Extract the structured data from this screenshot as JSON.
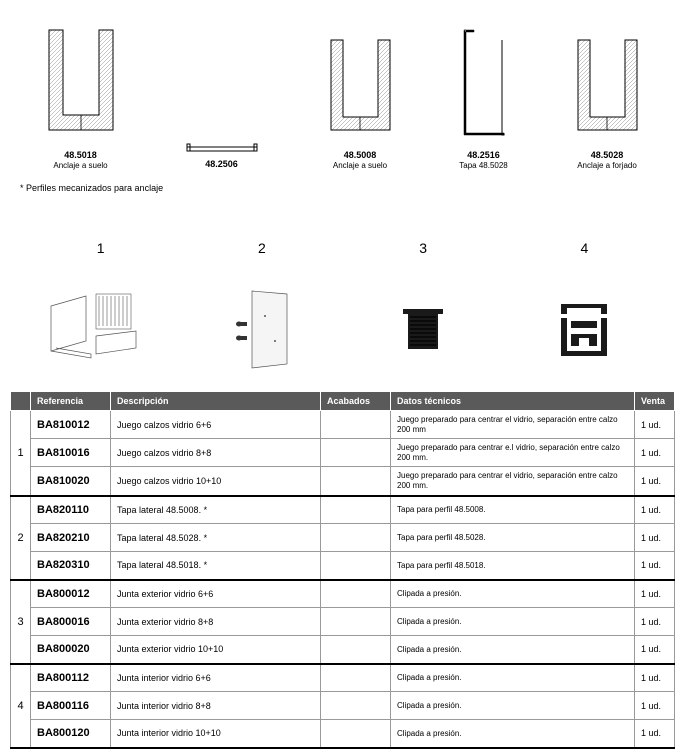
{
  "profiles": [
    {
      "code": "48.5018",
      "label": "Anclaje a suelo",
      "type": "u_tall"
    },
    {
      "code": "48.2506",
      "label": "",
      "type": "flat"
    },
    {
      "code": "48.5008",
      "label": "Anclaje a suelo",
      "type": "u_tall"
    },
    {
      "code": "48.2516",
      "label": "Tapa 48.5028",
      "type": "u_thin"
    },
    {
      "code": "48.5028",
      "label": "Anclaje a forjado",
      "type": "u_tall"
    }
  ],
  "note": "* Perfiles mecanizados para anclaje",
  "components": [
    {
      "num": "1"
    },
    {
      "num": "2"
    },
    {
      "num": "3"
    },
    {
      "num": "4"
    }
  ],
  "table": {
    "headers": {
      "referencia": "Referencia",
      "descripcion": "Descripción",
      "acabados": "Acabados",
      "datos": "Datos técnicos",
      "venta": "Venta"
    },
    "groups": [
      {
        "num": "1",
        "rows": [
          {
            "ref": "BA810012",
            "desc": "Juego calzos vidrio 6+6",
            "acab": "",
            "datos": "Juego preparado para centrar el vidrio, separación entre calzo 200 mm",
            "venta": "1 ud."
          },
          {
            "ref": "BA810016",
            "desc": "Juego calzos vidrio 8+8",
            "acab": "",
            "datos": "Juego preparado para centrar e.l vidrio, separación entre calzo 200 mm.",
            "venta": "1 ud."
          },
          {
            "ref": "BA810020",
            "desc": "Juego calzos vidrio 10+10",
            "acab": "",
            "datos": "Juego preparado para centrar el vidrio, separación entre calzo 200 mm.",
            "venta": "1 ud."
          }
        ]
      },
      {
        "num": "2",
        "rows": [
          {
            "ref": "BA820110",
            "desc": "Tapa lateral 48.5008. *",
            "acab": "",
            "datos": "Tapa para perfil 48.5008.",
            "venta": "1 ud."
          },
          {
            "ref": "BA820210",
            "desc": "Tapa lateral 48.5028. *",
            "acab": "",
            "datos": "Tapa para perfil 48.5028.",
            "venta": "1 ud."
          },
          {
            "ref": "BA820310",
            "desc": "Tapa lateral 48.5018. *",
            "acab": "",
            "datos": "Tapa para perfil 48.5018.",
            "venta": "1 ud."
          }
        ]
      },
      {
        "num": "3",
        "rows": [
          {
            "ref": "BA800012",
            "desc": "Junta exterior vidrio 6+6",
            "acab": "",
            "datos": "Clipada a presión.",
            "venta": "1 ud."
          },
          {
            "ref": "BA800016",
            "desc": "Junta exterior vidrio 8+8",
            "acab": "",
            "datos": "Clipada a presión.",
            "venta": "1 ud."
          },
          {
            "ref": "BA800020",
            "desc": "Junta exterior vidrio 10+10",
            "acab": "",
            "datos": "Clipada a presión.",
            "venta": "1 ud."
          }
        ]
      },
      {
        "num": "4",
        "rows": [
          {
            "ref": "BA800112",
            "desc": "Junta interior vidrio 6+6",
            "acab": "",
            "datos": "Clipada a presión.",
            "venta": "1 ud."
          },
          {
            "ref": "BA800116",
            "desc": "Junta interior vidrio 8+8",
            "acab": "",
            "datos": "Clipada a presión.",
            "venta": "1 ud."
          },
          {
            "ref": "BA800120",
            "desc": "Junta interior vidrio 10+10",
            "acab": "",
            "datos": "Clipada a presión.",
            "venta": "1 ud."
          }
        ]
      }
    ]
  },
  "colors": {
    "header_bg": "#5a5a5a",
    "header_text": "#ffffff",
    "border": "#999999",
    "group_border": "#000000"
  }
}
